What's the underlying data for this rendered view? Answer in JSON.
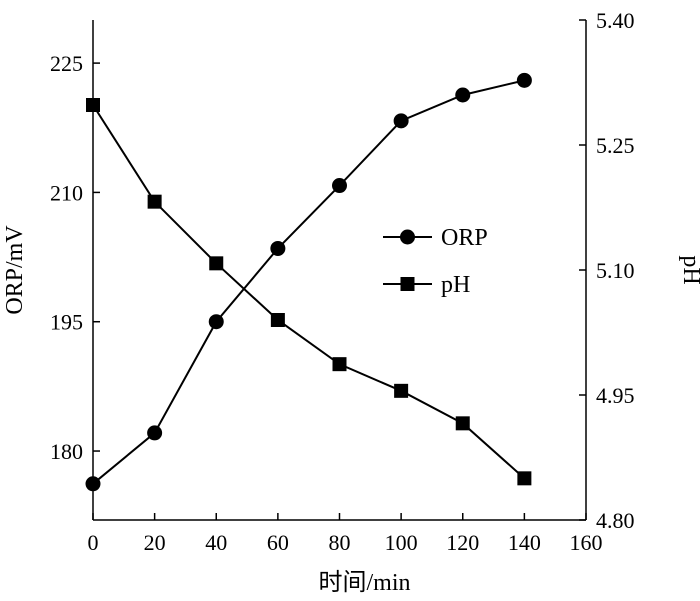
{
  "chart_data": {
    "type": "line",
    "x": [
      0,
      20,
      40,
      60,
      80,
      100,
      120,
      140
    ],
    "xlabel": "时间/min",
    "xlim": [
      0,
      160
    ],
    "xticks": [
      0,
      20,
      40,
      60,
      80,
      100,
      120,
      140,
      160
    ],
    "y_left": {
      "label": "ORP/mV",
      "lim": [
        172,
        230
      ],
      "ticks": [
        180,
        195,
        210,
        225
      ],
      "tick_labels": [
        "180",
        "195",
        "210",
        "225"
      ]
    },
    "y_right": {
      "label": "pH",
      "lim": [
        4.8,
        5.4
      ],
      "ticks": [
        4.8,
        4.95,
        5.1,
        5.25,
        5.4
      ],
      "tick_labels": [
        "4.80",
        "4.95",
        "5.10",
        "5.25",
        "5.40"
      ]
    },
    "series": [
      {
        "name": "ORP",
        "axis": "left",
        "marker": "circle",
        "values": [
          176.2,
          182.1,
          195.0,
          203.5,
          210.8,
          218.3,
          221.3,
          223.0
        ]
      },
      {
        "name": "pH",
        "axis": "right",
        "marker": "square",
        "values": [
          5.298,
          5.182,
          5.108,
          5.04,
          4.987,
          4.955,
          4.916,
          4.85
        ]
      }
    ],
    "legend": {
      "placement": "center-right"
    },
    "grid": false,
    "colors": {
      "line": "#000000",
      "marker": "#000000"
    }
  }
}
